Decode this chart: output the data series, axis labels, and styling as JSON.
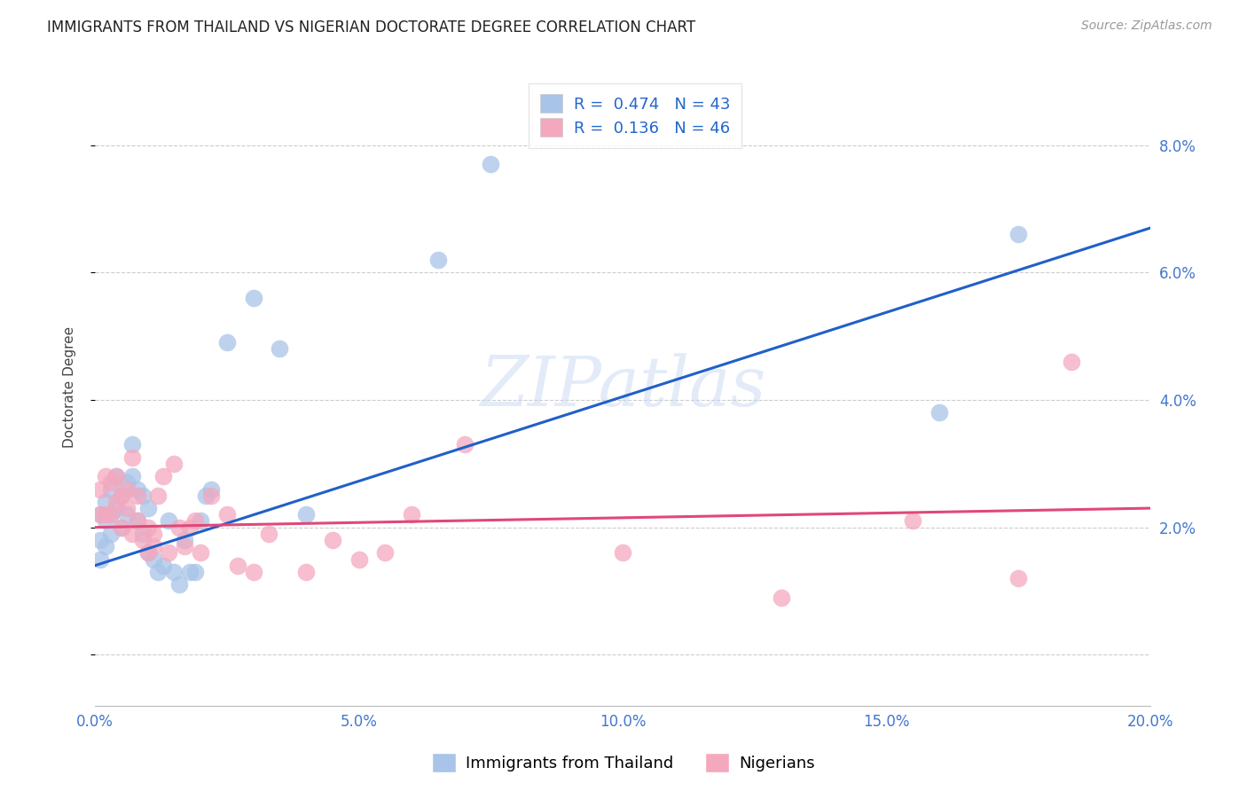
{
  "title": "IMMIGRANTS FROM THAILAND VS NIGERIAN DOCTORATE DEGREE CORRELATION CHART",
  "source": "Source: ZipAtlas.com",
  "ylabel": "Doctorate Degree",
  "xlim": [
    0.0,
    0.2
  ],
  "ylim": [
    -0.008,
    0.092
  ],
  "yticks": [
    0.0,
    0.02,
    0.04,
    0.06,
    0.08
  ],
  "xticks": [
    0.0,
    0.05,
    0.1,
    0.15,
    0.2
  ],
  "xtick_labels": [
    "0.0%",
    "5.0%",
    "10.0%",
    "15.0%",
    "20.0%"
  ],
  "ytick_labels_right": [
    "",
    "2.0%",
    "4.0%",
    "6.0%",
    "8.0%"
  ],
  "blue_R": 0.474,
  "blue_N": 43,
  "pink_R": 0.136,
  "pink_N": 46,
  "blue_color": "#a8c4e8",
  "pink_color": "#f4a8be",
  "blue_line_color": "#2060c8",
  "pink_line_color": "#e04878",
  "watermark": "ZIPatlas",
  "legend_label_blue": "Immigrants from Thailand",
  "legend_label_pink": "Nigerians",
  "blue_line_y_start": 0.014,
  "blue_line_y_end": 0.067,
  "pink_line_y_start": 0.02,
  "pink_line_y_end": 0.023,
  "blue_x": [
    0.001,
    0.001,
    0.001,
    0.002,
    0.002,
    0.002,
    0.003,
    0.003,
    0.003,
    0.004,
    0.004,
    0.005,
    0.005,
    0.006,
    0.006,
    0.007,
    0.007,
    0.008,
    0.008,
    0.009,
    0.009,
    0.01,
    0.01,
    0.011,
    0.012,
    0.013,
    0.014,
    0.015,
    0.016,
    0.017,
    0.018,
    0.019,
    0.02,
    0.021,
    0.022,
    0.025,
    0.03,
    0.035,
    0.04,
    0.065,
    0.075,
    0.16,
    0.175
  ],
  "blue_y": [
    0.022,
    0.018,
    0.015,
    0.024,
    0.021,
    0.017,
    0.026,
    0.022,
    0.019,
    0.028,
    0.023,
    0.025,
    0.02,
    0.027,
    0.022,
    0.033,
    0.028,
    0.026,
    0.021,
    0.025,
    0.019,
    0.023,
    0.016,
    0.015,
    0.013,
    0.014,
    0.021,
    0.013,
    0.011,
    0.018,
    0.013,
    0.013,
    0.021,
    0.025,
    0.026,
    0.049,
    0.056,
    0.048,
    0.022,
    0.062,
    0.077,
    0.038,
    0.066
  ],
  "pink_x": [
    0.001,
    0.001,
    0.002,
    0.002,
    0.003,
    0.003,
    0.004,
    0.004,
    0.005,
    0.005,
    0.006,
    0.006,
    0.007,
    0.007,
    0.008,
    0.008,
    0.009,
    0.01,
    0.01,
    0.011,
    0.011,
    0.012,
    0.013,
    0.014,
    0.015,
    0.016,
    0.017,
    0.018,
    0.019,
    0.02,
    0.022,
    0.025,
    0.027,
    0.03,
    0.033,
    0.04,
    0.045,
    0.05,
    0.055,
    0.06,
    0.07,
    0.1,
    0.13,
    0.155,
    0.175,
    0.185
  ],
  "pink_y": [
    0.026,
    0.022,
    0.028,
    0.022,
    0.027,
    0.022,
    0.028,
    0.024,
    0.025,
    0.02,
    0.026,
    0.023,
    0.031,
    0.019,
    0.025,
    0.021,
    0.018,
    0.02,
    0.016,
    0.019,
    0.017,
    0.025,
    0.028,
    0.016,
    0.03,
    0.02,
    0.017,
    0.02,
    0.021,
    0.016,
    0.025,
    0.022,
    0.014,
    0.013,
    0.019,
    0.013,
    0.018,
    0.015,
    0.016,
    0.022,
    0.033,
    0.016,
    0.009,
    0.021,
    0.012,
    0.046
  ]
}
